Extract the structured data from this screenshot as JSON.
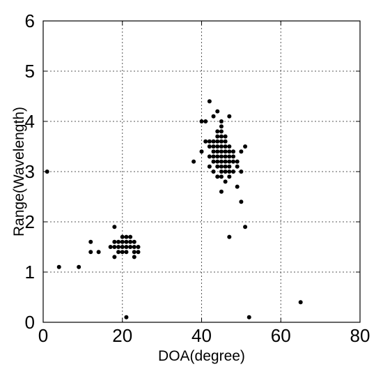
{
  "chart_data": {
    "type": "scatter",
    "title": "",
    "xlabel": "DOA(degree)",
    "ylabel": "Range(Wavelength)",
    "xlim": [
      0,
      80
    ],
    "ylim": [
      0,
      6
    ],
    "xticks": [
      0,
      20,
      40,
      60,
      80
    ],
    "yticks": [
      0,
      1,
      2,
      3,
      4,
      5,
      6
    ],
    "grid": true,
    "grid_style": "dotted",
    "marker_color": "#000000",
    "series": [
      {
        "points": [
          [
            1,
            3.0
          ],
          [
            4,
            1.1
          ],
          [
            9,
            1.1
          ],
          [
            12,
            1.6
          ],
          [
            12,
            1.4
          ],
          [
            14,
            1.4
          ],
          [
            17,
            1.5
          ],
          [
            18,
            1.6
          ],
          [
            18,
            1.5
          ],
          [
            18,
            1.9
          ],
          [
            18,
            1.3
          ],
          [
            19,
            1.4
          ],
          [
            19,
            1.6
          ],
          [
            19,
            1.5
          ],
          [
            20,
            1.7
          ],
          [
            20,
            1.5
          ],
          [
            20,
            1.6
          ],
          [
            20,
            1.4
          ],
          [
            21,
            1.7
          ],
          [
            21,
            1.6
          ],
          [
            21,
            1.5
          ],
          [
            21,
            1.4
          ],
          [
            21,
            0.1
          ],
          [
            22,
            1.7
          ],
          [
            22,
            1.6
          ],
          [
            22,
            1.5
          ],
          [
            23,
            1.6
          ],
          [
            23,
            1.5
          ],
          [
            23,
            1.4
          ],
          [
            23,
            1.3
          ],
          [
            24,
            1.5
          ],
          [
            24,
            1.4
          ],
          [
            38,
            3.2
          ],
          [
            40,
            4.0
          ],
          [
            40,
            3.4
          ],
          [
            41,
            4.0
          ],
          [
            41,
            3.6
          ],
          [
            42,
            4.4
          ],
          [
            42,
            3.6
          ],
          [
            42,
            3.5
          ],
          [
            42,
            3.3
          ],
          [
            42,
            3.1
          ],
          [
            43,
            4.1
          ],
          [
            43,
            3.6
          ],
          [
            43,
            3.5
          ],
          [
            43,
            3.4
          ],
          [
            43,
            3.3
          ],
          [
            43,
            3.2
          ],
          [
            43,
            3.0
          ],
          [
            44,
            4.2
          ],
          [
            44,
            3.8
          ],
          [
            44,
            3.7
          ],
          [
            44,
            3.6
          ],
          [
            44,
            3.5
          ],
          [
            44,
            3.4
          ],
          [
            44,
            3.3
          ],
          [
            44,
            3.2
          ],
          [
            44,
            3.1
          ],
          [
            44,
            2.9
          ],
          [
            45,
            4.0
          ],
          [
            45,
            3.9
          ],
          [
            45,
            3.8
          ],
          [
            45,
            3.7
          ],
          [
            45,
            3.6
          ],
          [
            45,
            3.5
          ],
          [
            45,
            3.4
          ],
          [
            45,
            3.3
          ],
          [
            45,
            3.2
          ],
          [
            45,
            3.1
          ],
          [
            45,
            3.0
          ],
          [
            45,
            2.9
          ],
          [
            45,
            2.6
          ],
          [
            46,
            3.7
          ],
          [
            46,
            3.6
          ],
          [
            46,
            3.5
          ],
          [
            46,
            3.4
          ],
          [
            46,
            3.3
          ],
          [
            46,
            3.2
          ],
          [
            46,
            3.1
          ],
          [
            46,
            3.0
          ],
          [
            46,
            2.8
          ],
          [
            47,
            4.1
          ],
          [
            47,
            3.5
          ],
          [
            47,
            3.4
          ],
          [
            47,
            3.3
          ],
          [
            47,
            3.2
          ],
          [
            47,
            3.1
          ],
          [
            47,
            3.0
          ],
          [
            47,
            2.9
          ],
          [
            47,
            1.7
          ],
          [
            48,
            3.4
          ],
          [
            48,
            3.3
          ],
          [
            48,
            3.2
          ],
          [
            48,
            3.0
          ],
          [
            49,
            3.2
          ],
          [
            49,
            3.1
          ],
          [
            49,
            2.7
          ],
          [
            50,
            3.4
          ],
          [
            50,
            3.0
          ],
          [
            50,
            2.4
          ],
          [
            51,
            3.5
          ],
          [
            51,
            1.9
          ],
          [
            52,
            0.1
          ],
          [
            65,
            0.4
          ]
        ]
      }
    ]
  }
}
